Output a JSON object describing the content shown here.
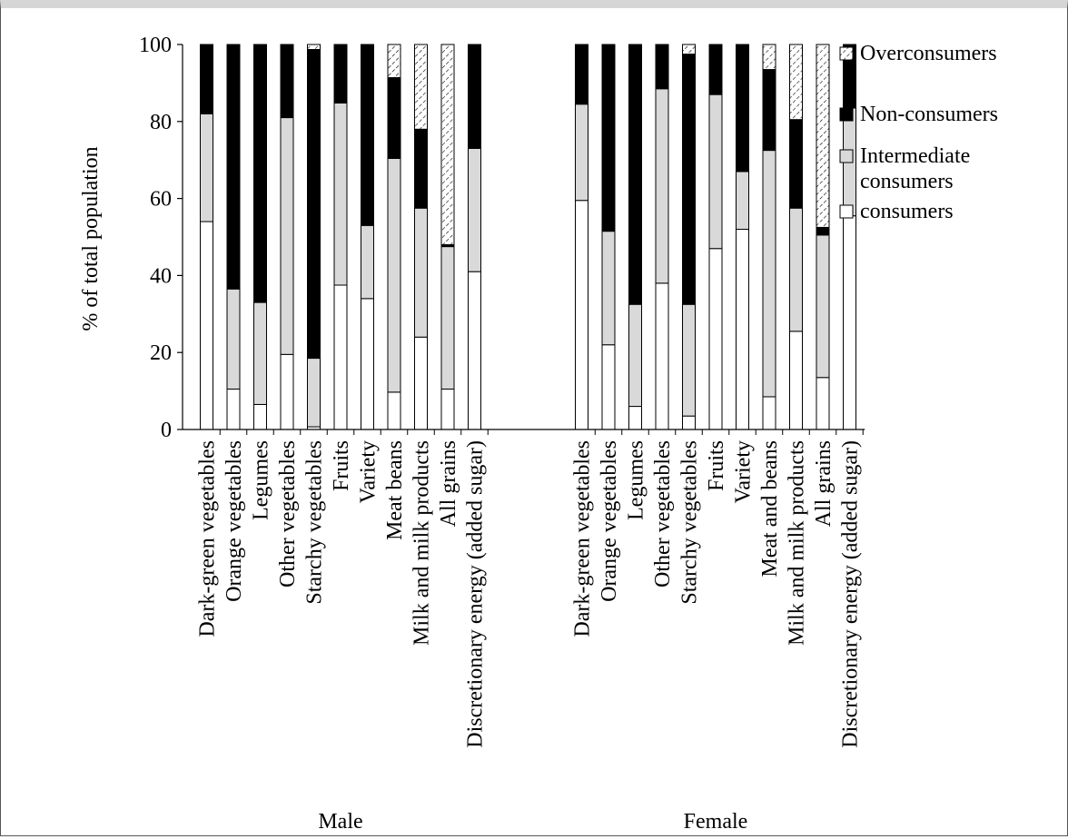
{
  "chart_data": {
    "type": "bar",
    "stacked": true,
    "ylabel": "% of total population",
    "ylim": [
      0,
      100
    ],
    "yticks": [
      0,
      20,
      40,
      60,
      80,
      100
    ],
    "legend": {
      "placement": "right",
      "entries": [
        {
          "key": "over",
          "label": "Overconsumers"
        },
        {
          "key": "non",
          "label": "Non-consumers"
        },
        {
          "key": "inter",
          "label": "Intermediate consumers",
          "lines": [
            "Intermediate",
            "consumers"
          ]
        },
        {
          "key": "cons",
          "label": "consumers"
        }
      ]
    },
    "series_colors": {
      "cons": "#ffffff",
      "inter": "#d9d9d9",
      "non": "#000000",
      "over": "hatch"
    },
    "groups": [
      {
        "name": "Male",
        "categories": [
          "Dark-green vegetables",
          "Orange vegetables",
          "Legumes",
          "Other vegetables",
          "Starchy vegetables",
          "Fruits",
          "Variety",
          "Meat beans",
          "Milk and milk products",
          "All grains",
          "Discretionary energy (added sugar)"
        ],
        "series": [
          {
            "key": "cons",
            "values": [
              54,
              10.5,
              6.5,
              19.5,
              0.7,
              37.5,
              34,
              9.7,
              24,
              10.5,
              41
            ]
          },
          {
            "key": "inter",
            "values": [
              28,
              26,
              26.5,
              61.5,
              17.8,
              47.3,
              19,
              60.7,
              33.5,
              37,
              32
            ]
          },
          {
            "key": "non",
            "values": [
              18,
              63.5,
              67,
              19,
              80.2,
              15.2,
              47,
              21,
              20.5,
              0.5,
              27
            ]
          },
          {
            "key": "over",
            "values": [
              0,
              0,
              0,
              0,
              1.3,
              0,
              0,
              8.6,
              22,
              52,
              0
            ]
          }
        ]
      },
      {
        "name": "Female",
        "categories": [
          "Dark-green vegetables",
          "Orange vegetables",
          "Legumes",
          "Other vegetables",
          "Starchy vegetables",
          "Fruits",
          "Variety",
          "Meat and beans",
          "Milk and milk products",
          "All grains",
          "Discretionary energy (added sugar)"
        ],
        "series": [
          {
            "key": "cons",
            "values": [
              59.5,
              22,
              6,
              38,
              3.5,
              47,
              52,
              8.5,
              25.5,
              13.5,
              55.5
            ]
          },
          {
            "key": "inter",
            "values": [
              25,
              29.5,
              26.5,
              50.5,
              29,
              40,
              15,
              64,
              32,
              37,
              28
            ]
          },
          {
            "key": "non",
            "values": [
              15.5,
              48.5,
              67.5,
              11.5,
              65,
              13,
              33,
              21,
              23,
              2,
              16.5
            ]
          },
          {
            "key": "over",
            "values": [
              0,
              0,
              0,
              0,
              2.5,
              0,
              0,
              6.5,
              19.5,
              47.5,
              0
            ]
          }
        ]
      }
    ]
  }
}
